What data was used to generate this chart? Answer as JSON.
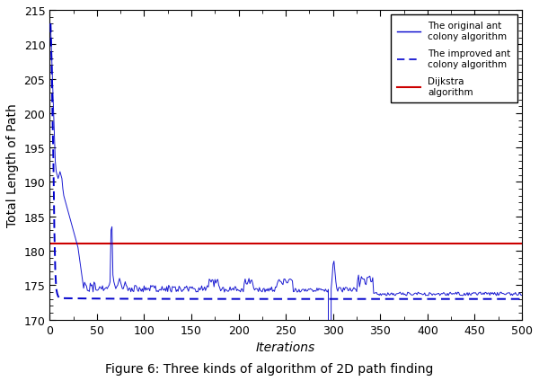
{
  "title_bold": "Figure 6:",
  "title_rest": " Three kinds of algorithm of 2D path finding",
  "xlabel": "Iterations",
  "ylabel": "Total Length of Path",
  "xlim": [
    0,
    500
  ],
  "ylim": [
    170,
    215
  ],
  "yticks": [
    170,
    175,
    180,
    185,
    190,
    195,
    200,
    205,
    210,
    215
  ],
  "xticks": [
    0,
    50,
    100,
    150,
    200,
    250,
    300,
    350,
    400,
    450,
    500
  ],
  "dijkstra_y": 181.0,
  "original_ant_color": "#0000cc",
  "improved_ant_color": "#0000cc",
  "dijkstra_color": "#cc0000",
  "legend_labels": [
    "The original ant\ncolony algorithm",
    "The improved ant\ncolony algorithm",
    "Dijkstra\nalgorithm"
  ],
  "background_color": "#ffffff",
  "seed": 42
}
